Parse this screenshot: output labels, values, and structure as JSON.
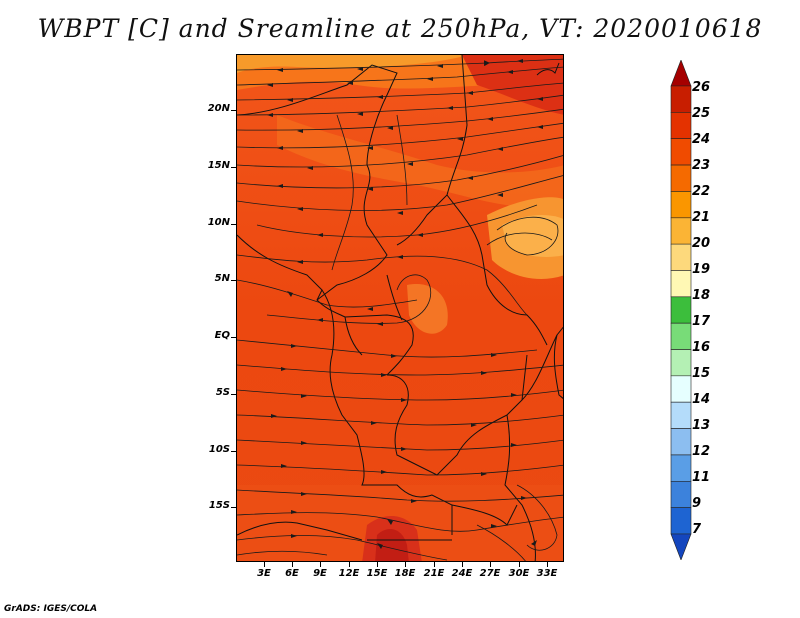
{
  "title": "WBPT [C] and Sreamline at 250hPa, VT: 2020010618",
  "credit": "GrADS: IGES/COLA",
  "lat_labels": [
    "20N",
    "15N",
    "10N",
    "5N",
    "EQ",
    "5S",
    "10S",
    "15S"
  ],
  "lon_labels": [
    "3E",
    "6E",
    "9E",
    "12E",
    "15E",
    "18E",
    "21E",
    "24E",
    "27E",
    "30E",
    "33E"
  ],
  "colorbar": {
    "labels": [
      "26",
      "25",
      "24",
      "23",
      "22",
      "21",
      "20",
      "19",
      "18",
      "17",
      "16",
      "15",
      "14",
      "13",
      "12",
      "11",
      "9",
      "7"
    ],
    "colors": [
      "#a50000",
      "#c81e00",
      "#e43200",
      "#f04b00",
      "#f56a00",
      "#fa9600",
      "#fbb435",
      "#fdd97c",
      "#fff8b4",
      "#3cbe3c",
      "#78dc78",
      "#b4f0b4",
      "#e6ffff",
      "#b4dcfa",
      "#8cbef0",
      "#5a9ee6",
      "#3c82dc",
      "#1e64d2",
      "#1446be"
    ]
  }
}
